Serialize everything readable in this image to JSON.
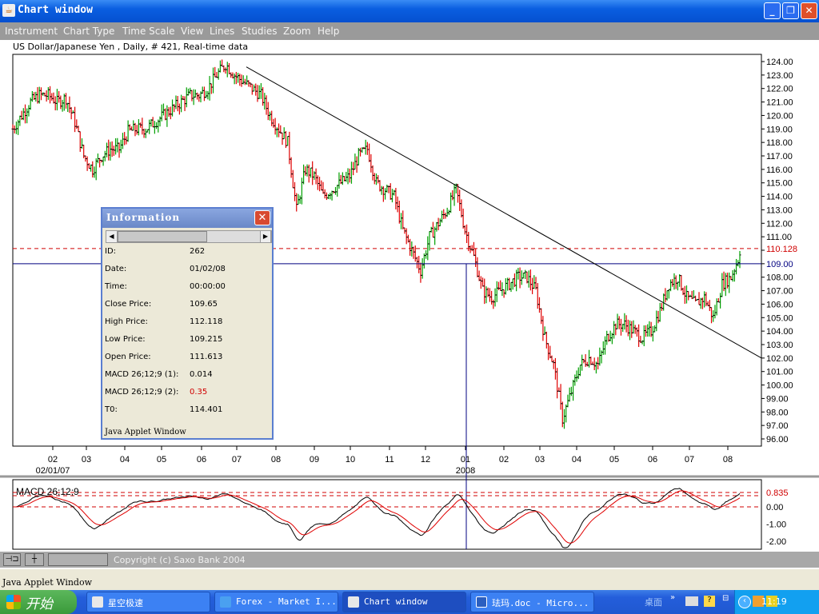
{
  "window": {
    "title": "Chart window",
    "buttons": {
      "minimize": "_",
      "maximize": "❐",
      "close": "✕"
    }
  },
  "menu": [
    "Instrument",
    "Chart Type",
    "Time Scale",
    "View",
    "Lines",
    "Studies",
    "Zoom",
    "Help"
  ],
  "chart_subtitle": "US Dollar/Japanese Yen , Daily, # 421, Real-time data",
  "info": {
    "title": "Information",
    "footer": "Java Applet Window",
    "rows": [
      {
        "label": "ID:",
        "value": "262"
      },
      {
        "label": "Date:",
        "value": "01/02/08"
      },
      {
        "label": "Time:",
        "value": "00:00:00"
      },
      {
        "label": "Close Price:",
        "value": "109.65"
      },
      {
        "label": "High Price:",
        "value": "112.118"
      },
      {
        "label": "Low Price:",
        "value": "109.215"
      },
      {
        "label": "Open Price:",
        "value": "111.613"
      },
      {
        "label": "MACD 26;12;9 (1):",
        "value": "0.014"
      },
      {
        "label": "MACD 26;12;9 (2):",
        "value": "0.35",
        "color": "#d00000"
      },
      {
        "label": "T0:",
        "value": "114.401"
      }
    ]
  },
  "status": {
    "copyright": "Copyright (c) Saxo Bank 2004"
  },
  "applet_label": "Java Applet Window",
  "taskbar": {
    "start": "开始",
    "tasks": [
      "星空极速",
      "Forex - Market I...",
      "Chart window",
      "珐玛.doc - Micro..."
    ],
    "desktop": "桌面",
    "clock": "11:19"
  },
  "chart_data": {
    "type": "ohlc",
    "instrument": "US Dollar/Japanese Yen",
    "y_ticks": [
      "124.00",
      "123.00",
      "122.00",
      "121.00",
      "120.00",
      "119.00",
      "118.00",
      "117.00",
      "116.00",
      "115.00",
      "114.00",
      "113.00",
      "112.00",
      "111.00",
      "110.00",
      "109.00",
      "108.00",
      "107.00",
      "106.00",
      "105.00",
      "104.00",
      "103.00",
      "102.00",
      "101.00",
      "100.00",
      "99.00",
      "98.00",
      "97.00",
      "96.00"
    ],
    "ylim": [
      96,
      124
    ],
    "x_ticks": [
      "02",
      "03",
      "04",
      "05",
      "06",
      "07",
      "08",
      "09",
      "10",
      "11",
      "12",
      "01",
      "02",
      "03",
      "04",
      "05",
      "06",
      "07",
      "08"
    ],
    "x_sub_labels": {
      "first": "02/01/07",
      "year": "2008"
    },
    "weekly_close_estimates": [
      119,
      120,
      121,
      121.5,
      121.5,
      121,
      121.3,
      119.5,
      117,
      116,
      117,
      117.5,
      117.5,
      118.8,
      119,
      119,
      119.5,
      120,
      120.5,
      121,
      121.5,
      121.5,
      122,
      123,
      123.8,
      123,
      122.5,
      122,
      121.5,
      120,
      119,
      118,
      113,
      116,
      115.5,
      114,
      114.5,
      115,
      115.5,
      117,
      117.5,
      115,
      114.5,
      114,
      111.5,
      110,
      108.5,
      111,
      112,
      113,
      114.5,
      111.5,
      109.5,
      107,
      106.5,
      107,
      107.5,
      108,
      108,
      107,
      103.5,
      101.5,
      97.5,
      99.5,
      101.5,
      102,
      101.5,
      103.5,
      104.5,
      104.5,
      104,
      103.5,
      104,
      105.5,
      107.5,
      108,
      106.5,
      106,
      106.5,
      105,
      107.5,
      108,
      109.65
    ],
    "levels": [
      {
        "label": "110.128",
        "value": 110.128,
        "color": "#d00000",
        "style": "dashed"
      },
      {
        "label": "109.00",
        "value": 109.0,
        "color": "#000080",
        "style": "solid"
      }
    ],
    "trendline": {
      "from": 123.6,
      "to": 102.0,
      "color": "#000000"
    },
    "macd": {
      "title": "MACD 26;12;9",
      "y_ticks": [
        "0.835",
        "0.00",
        "-1.00",
        "-2.00"
      ],
      "levels": [
        0.835,
        0.65,
        0
      ],
      "series_colors": [
        "#000000",
        "#e00000"
      ]
    },
    "colors": {
      "up": "#00a000",
      "down": "#e00000"
    }
  }
}
